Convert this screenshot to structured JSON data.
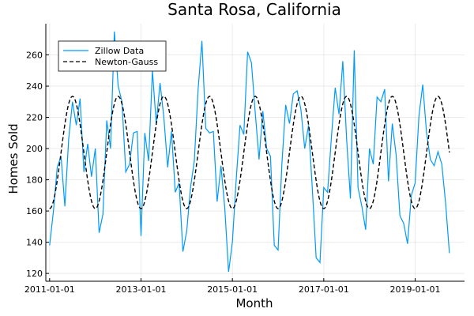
{
  "chart_data": {
    "type": "line",
    "title": "Santa Rosa, California",
    "xlabel": "Month",
    "ylabel": "Homes Sold",
    "xlim": [
      "2010-12-01",
      "2020-01-31"
    ],
    "ylim": [
      115,
      280
    ],
    "x_ticks": [
      "2011-01-01",
      "2013-01-01",
      "2015-01-01",
      "2017-01-01",
      "2019-01-01"
    ],
    "y_ticks": [
      120,
      140,
      160,
      180,
      200,
      220,
      240,
      260
    ],
    "grid": true,
    "legend_position": "top-left",
    "x_start": "2011-01",
    "x_frequency": "monthly",
    "series": [
      {
        "name": "Zillow Data",
        "color": "#009af9",
        "style": "solid",
        "values": [
          138,
          160,
          188,
          195,
          163,
          206,
          230,
          215,
          232,
          185,
          203,
          182,
          200,
          146,
          158,
          218,
          200,
          275,
          240,
          230,
          185,
          190,
          210,
          211,
          144,
          210,
          192,
          250,
          216,
          242,
          220,
          188,
          211,
          172,
          178,
          134,
          147,
          175,
          192,
          238,
          269,
          213,
          210,
          211,
          166,
          189,
          162,
          121,
          140,
          180,
          215,
          209,
          262,
          255,
          223,
          193,
          224,
          200,
          195,
          138,
          135,
          190,
          228,
          216,
          235,
          237,
          225,
          200,
          215,
          174,
          130,
          127,
          175,
          172,
          207,
          239,
          222,
          256,
          206,
          168,
          263,
          175,
          163,
          148,
          200,
          190,
          233,
          230,
          238,
          179,
          216,
          196,
          157,
          152,
          139,
          170,
          178,
          221,
          241,
          210,
          193,
          189,
          198,
          190,
          165,
          133
        ]
      },
      {
        "name": "Newton-Gauss",
        "color": "#000000",
        "style": "dashed",
        "model": "sinusoid",
        "mean": 197.5,
        "amplitude": 36,
        "period_months": 12,
        "peak_month": 7
      }
    ]
  }
}
